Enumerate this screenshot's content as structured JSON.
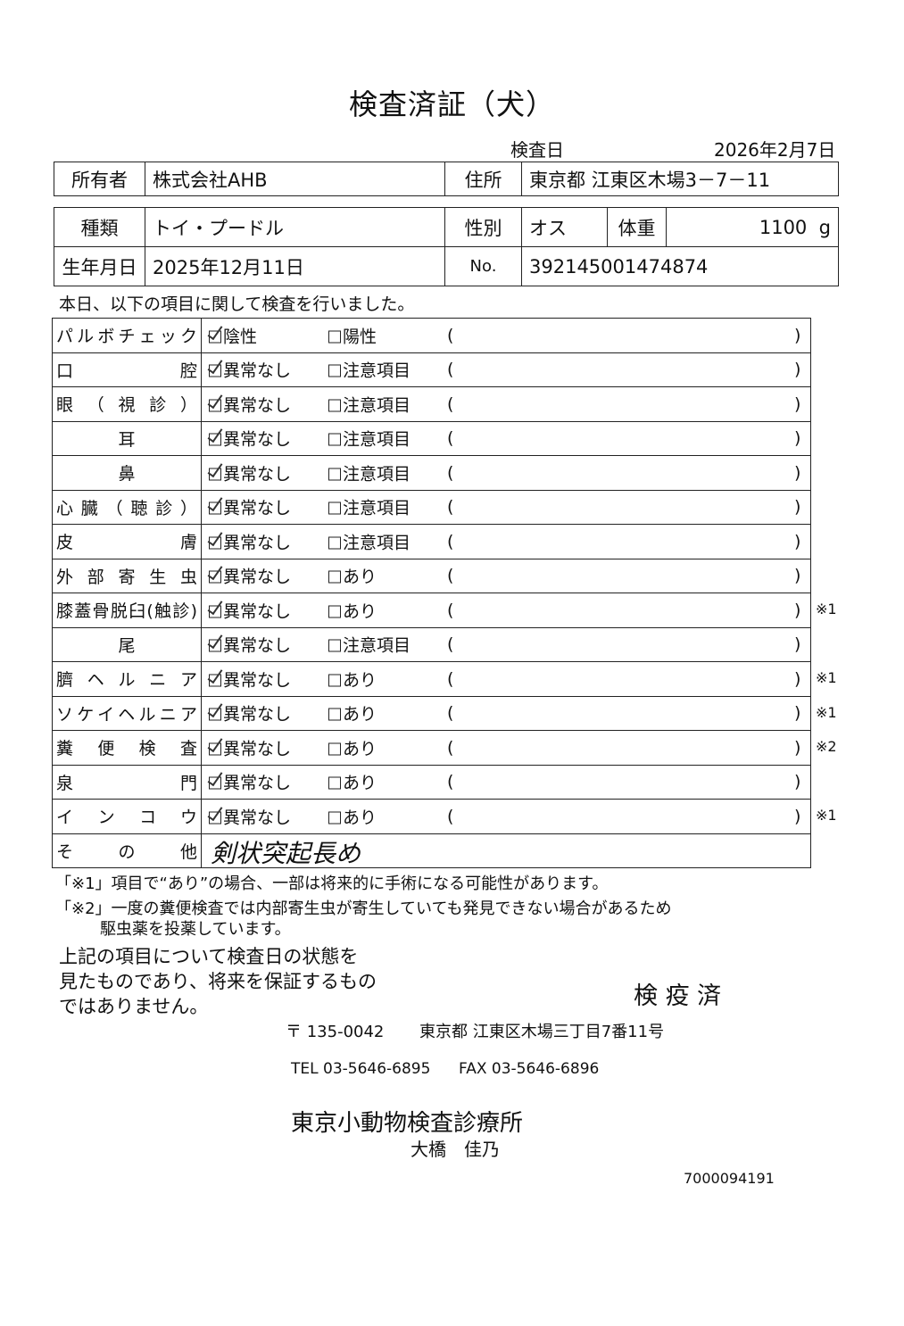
{
  "title": "検査済証（犬）",
  "exam_date_label": "検査日",
  "exam_date": "2026年2月7日",
  "owner": {
    "label": "所有者",
    "value": "株式会社AHB",
    "address_label": "住所",
    "address": "東京都 江東区木場3－7－11"
  },
  "animal": {
    "kind_label": "種類",
    "kind": "トイ・プードル",
    "sex_label": "性別",
    "sex": "オス",
    "weight_label": "体重",
    "weight": "1100",
    "weight_unit": "g",
    "birth_label": "生年月日",
    "birth": "2025年12月11日",
    "no_label": "No.",
    "no": "392145001474874"
  },
  "intro": "本日、以下の項目に関して検査を行いました。",
  "items": [
    {
      "label": "パルボチェック",
      "opt1": "陰性",
      "opt2": "陽性",
      "open": "(",
      "close": ")",
      "note": "",
      "checked": 1
    },
    {
      "label": "口腔",
      "opt1": "異常なし",
      "opt2": "注意項目",
      "open": "(",
      "close": ")",
      "note": "",
      "checked": 1
    },
    {
      "label": "眼（視診）",
      "opt1": "異常なし",
      "opt2": "注意項目",
      "open": "(",
      "close": ")",
      "note": "",
      "checked": 1
    },
    {
      "label": "耳",
      "opt1": "異常なし",
      "opt2": "注意項目",
      "open": "(",
      "close": ")",
      "note": "",
      "checked": 1,
      "center": true
    },
    {
      "label": "鼻",
      "opt1": "異常なし",
      "opt2": "注意項目",
      "open": "(",
      "close": ")",
      "note": "",
      "checked": 1,
      "center": true
    },
    {
      "label": "心臓（聴診）",
      "opt1": "異常なし",
      "opt2": "注意項目",
      "open": "(",
      "close": ")",
      "note": "",
      "checked": 1
    },
    {
      "label": "皮膚",
      "opt1": "異常なし",
      "opt2": "注意項目",
      "open": "(",
      "close": ")",
      "note": "",
      "checked": 1
    },
    {
      "label": "外部寄生虫",
      "opt1": "異常なし",
      "opt2": "あり",
      "open": "(",
      "close": ")",
      "note": "",
      "checked": 1
    },
    {
      "label": "膝蓋骨脱臼(触診)",
      "opt1": "異常なし",
      "opt2": "あり",
      "open": "(",
      "close": ")",
      "note": "※1",
      "checked": 1
    },
    {
      "label": "尾",
      "opt1": "異常なし",
      "opt2": "注意項目",
      "open": "(",
      "close": ")",
      "note": "",
      "checked": 1,
      "center": true
    },
    {
      "label": "臍ヘルニア",
      "opt1": "異常なし",
      "opt2": "あり",
      "open": "(",
      "close": ")",
      "note": "※1",
      "checked": 1
    },
    {
      "label": "ソケイヘルニア",
      "opt1": "異常なし",
      "opt2": "あり",
      "open": "(",
      "close": ")",
      "note": "※1",
      "checked": 1
    },
    {
      "label": "糞便検査",
      "opt1": "異常なし",
      "opt2": "あり",
      "open": "(",
      "close": ")",
      "note": "※2",
      "checked": 1
    },
    {
      "label": "泉門",
      "opt1": "異常なし",
      "opt2": "あり",
      "open": "(",
      "close": ")",
      "note": "",
      "checked": 1
    },
    {
      "label": "インコウ",
      "opt1": "異常なし",
      "opt2": "あり",
      "open": "(",
      "close": ")",
      "note": "※1",
      "checked": 1
    }
  ],
  "other": {
    "label": "その他",
    "value": "剣状突起長め"
  },
  "note1": "「※1」項目で“あり”の場合、一部は将来的に手術になる可能性があります。",
  "note2a": "「※2」一度の糞便検査では内部寄生虫が寄生していても発見できない場合があるため",
  "note2b": "駆虫薬を投薬しています。",
  "disclaimer": [
    "上記の項目について検査日の状態を",
    "見たものであり、将来を保証するもの",
    "ではありません。"
  ],
  "stamp": "検 疫 済",
  "postal": "〒 135-0042",
  "clinic_address": "東京都 江東区木場三丁目7番11号",
  "tel": "TEL 03-5646-6895",
  "fax": "FAX 03-5646-6896",
  "clinic": "東京小動物検査診療所",
  "doctor": "大橋　佳乃",
  "doc_no": "7000094191"
}
